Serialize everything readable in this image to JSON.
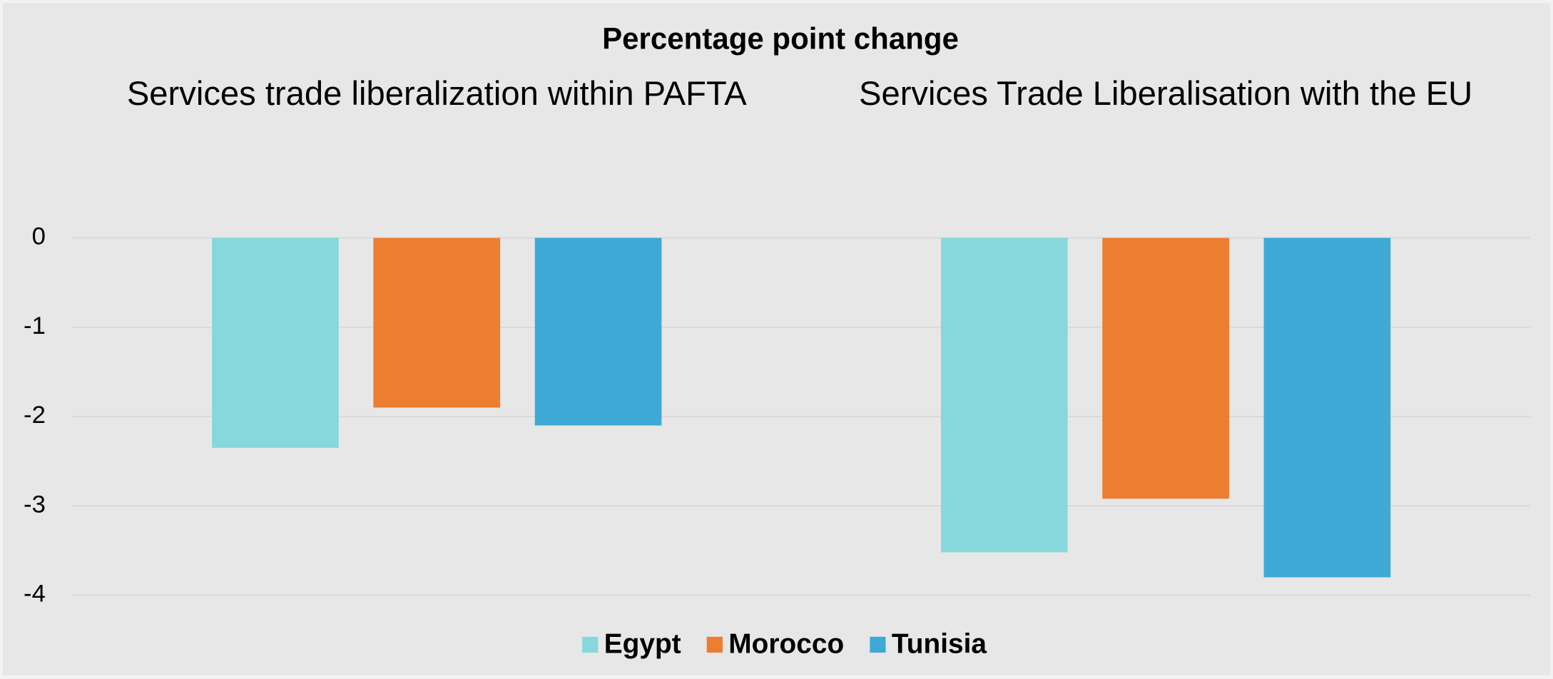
{
  "chart_data": {
    "type": "bar",
    "title": "Percentage point change",
    "categories": [
      "Services trade liberalization within PAFTA",
      "Services Trade Liberalisation with the EU"
    ],
    "series": [
      {
        "name": "Egypt",
        "color": "#86d8dc",
        "values": [
          -2.35,
          -3.52
        ]
      },
      {
        "name": "Morocco",
        "color": "#ed7d31",
        "values": [
          -1.9,
          -2.92
        ]
      },
      {
        "name": "Tunisia",
        "color": "#3fa9d6",
        "values": [
          -2.1,
          -3.8
        ]
      }
    ],
    "ylim": [
      -4,
      1
    ],
    "yticks": [
      -4,
      -3,
      -2,
      -1,
      0
    ],
    "grid": true,
    "legend": "bottom"
  }
}
